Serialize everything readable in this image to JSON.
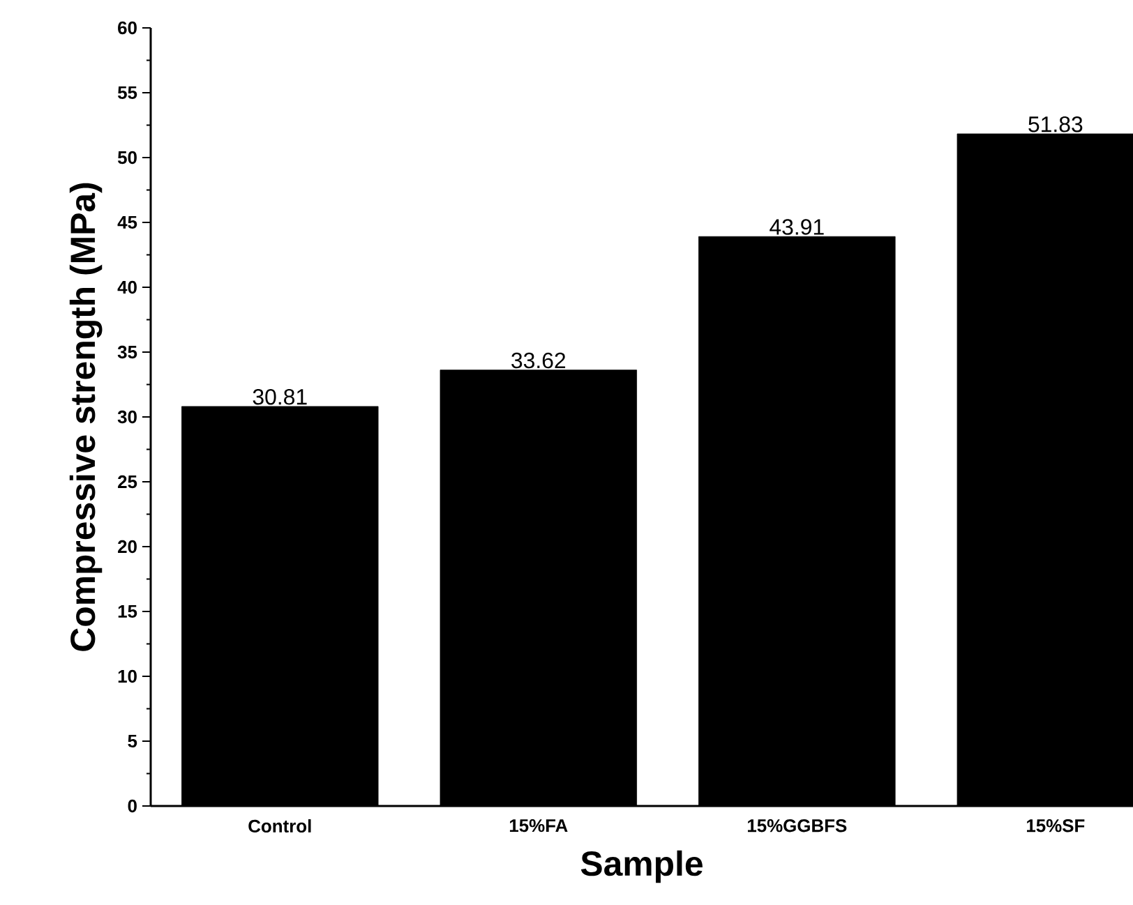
{
  "chart_data": {
    "type": "bar",
    "xlabel": "Sample",
    "ylabel": "Compressive strength (MPa)",
    "categories": [
      "Control",
      "15%FA",
      "15%GGBFS",
      "15%SF"
    ],
    "values": [
      30.81,
      33.62,
      43.91,
      51.83
    ],
    "color": "#000000",
    "ylim": [
      0,
      60
    ],
    "yticks": [
      0,
      5,
      10,
      15,
      20,
      25,
      30,
      35,
      40,
      45,
      50,
      55,
      60
    ],
    "data_labels": true,
    "grid": false
  }
}
